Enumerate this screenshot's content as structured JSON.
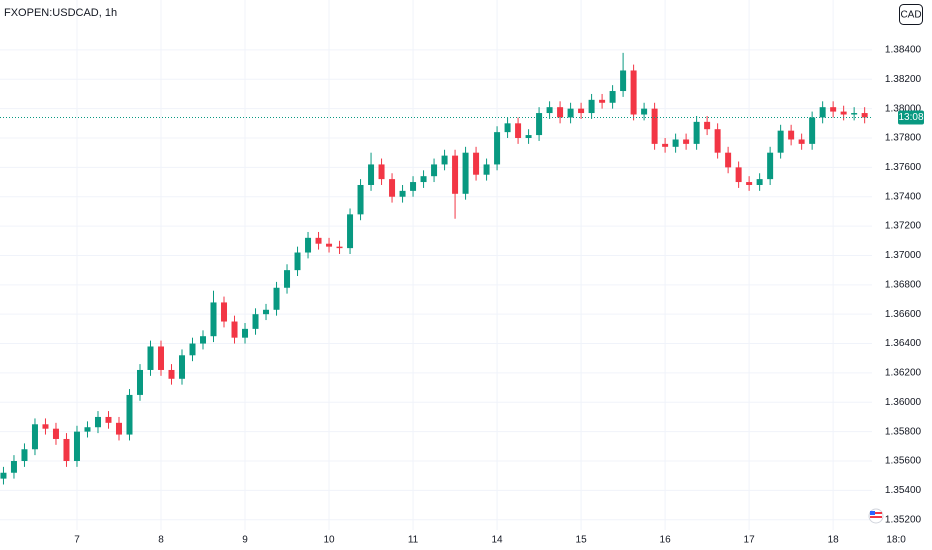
{
  "chart_data": {
    "type": "candlestick",
    "title": "FXOPEN:USDCAD, 1h",
    "currency_button": "CAD",
    "up_color": "#089981",
    "down_color": "#f23645",
    "grid": true,
    "xlim": [
      -0.33,
      82.7
    ],
    "xticks": [
      {
        "value": 7,
        "label": "7"
      },
      {
        "value": 15,
        "label": "8"
      },
      {
        "value": 23,
        "label": "9"
      },
      {
        "value": 31,
        "label": "10"
      },
      {
        "value": 39,
        "label": "11"
      },
      {
        "value": 47,
        "label": "14"
      },
      {
        "value": 55,
        "label": "15"
      },
      {
        "value": 63,
        "label": "16"
      },
      {
        "value": 71,
        "label": "17"
      },
      {
        "value": 79,
        "label": "18"
      },
      {
        "value": 85,
        "label": "18:0"
      }
    ],
    "ylim": [
      1.3513,
      1.3874
    ],
    "yticks": [
      {
        "value": 1.352,
        "label": "1.35200"
      },
      {
        "value": 1.354,
        "label": "1.35400"
      },
      {
        "value": 1.356,
        "label": "1.35600"
      },
      {
        "value": 1.358,
        "label": "1.35800"
      },
      {
        "value": 1.36,
        "label": "1.36000"
      },
      {
        "value": 1.362,
        "label": "1.36200"
      },
      {
        "value": 1.364,
        "label": "1.36400"
      },
      {
        "value": 1.366,
        "label": "1.36600"
      },
      {
        "value": 1.368,
        "label": "1.36800"
      },
      {
        "value": 1.37,
        "label": "1.37000"
      },
      {
        "value": 1.372,
        "label": "1.37200"
      },
      {
        "value": 1.374,
        "label": "1.37400"
      },
      {
        "value": 1.376,
        "label": "1.37600"
      },
      {
        "value": 1.378,
        "label": "1.37800"
      },
      {
        "value": 1.38,
        "label": "1.38000"
      },
      {
        "value": 1.382,
        "label": "1.38200"
      },
      {
        "value": 1.384,
        "label": "1.38400"
      }
    ],
    "last_price": 1.3794,
    "countdown": "13:08",
    "open": [
      1.3548,
      1.3552,
      1.356,
      1.3568,
      1.3585,
      1.3582,
      1.3575,
      1.356,
      1.358,
      1.3583,
      1.359,
      1.3586,
      1.3578,
      1.3605,
      1.3622,
      1.3638,
      1.3622,
      1.3616,
      1.3632,
      1.364,
      1.3645,
      1.3668,
      1.3655,
      1.3644,
      1.365,
      1.366,
      1.3663,
      1.3678,
      1.369,
      1.3702,
      1.3712,
      1.3708,
      1.3706,
      1.3705,
      1.3728,
      1.3748,
      1.3762,
      1.3752,
      1.374,
      1.3744,
      1.375,
      1.3754,
      1.3762,
      1.3768,
      1.3742,
      1.377,
      1.3755,
      1.3762,
      1.3784,
      1.379,
      1.378,
      1.3782,
      1.3797,
      1.3801,
      1.3794,
      1.38,
      1.3797,
      1.3806,
      1.3804,
      1.3812,
      1.3826,
      1.3796,
      1.38,
      1.3776,
      1.3774,
      1.3779,
      1.3776,
      1.3791,
      1.3786,
      1.377,
      1.376,
      1.375,
      1.3748,
      1.3752,
      1.377,
      1.3785,
      1.3779,
      1.3776,
      1.3794,
      1.3801,
      1.3798,
      1.3796,
      1.3797
    ],
    "high": [
      1.3556,
      1.3564,
      1.3572,
      1.3589,
      1.3589,
      1.3586,
      1.3579,
      1.3584,
      1.3587,
      1.3594,
      1.3594,
      1.359,
      1.3609,
      1.3626,
      1.3642,
      1.3642,
      1.3626,
      1.3636,
      1.3644,
      1.3649,
      1.3676,
      1.3672,
      1.3659,
      1.3654,
      1.3664,
      1.3667,
      1.3682,
      1.3694,
      1.3706,
      1.3716,
      1.3716,
      1.3712,
      1.371,
      1.3732,
      1.3752,
      1.377,
      1.3766,
      1.3756,
      1.3748,
      1.3754,
      1.3758,
      1.3766,
      1.3772,
      1.3772,
      1.3774,
      1.3774,
      1.3766,
      1.3788,
      1.3794,
      1.3794,
      1.3786,
      1.3801,
      1.3805,
      1.3805,
      1.3804,
      1.3804,
      1.381,
      1.381,
      1.3816,
      1.3838,
      1.383,
      1.3804,
      1.3804,
      1.378,
      1.3783,
      1.3783,
      1.3795,
      1.3795,
      1.379,
      1.3774,
      1.3764,
      1.3754,
      1.3756,
      1.3774,
      1.3789,
      1.3789,
      1.3783,
      1.3798,
      1.3805,
      1.3805,
      1.3802,
      1.3801,
      1.3801
    ],
    "low": [
      1.3544,
      1.3548,
      1.3556,
      1.3564,
      1.3578,
      1.3571,
      1.3556,
      1.3556,
      1.3576,
      1.3579,
      1.3582,
      1.3574,
      1.3574,
      1.3601,
      1.3618,
      1.3618,
      1.3612,
      1.3612,
      1.3628,
      1.3636,
      1.3641,
      1.3651,
      1.364,
      1.364,
      1.3646,
      1.3656,
      1.3659,
      1.3674,
      1.3686,
      1.3698,
      1.3704,
      1.3702,
      1.3701,
      1.3701,
      1.3724,
      1.3744,
      1.3748,
      1.3736,
      1.3736,
      1.374,
      1.3746,
      1.375,
      1.3758,
      1.3725,
      1.3738,
      1.3751,
      1.3751,
      1.3758,
      1.378,
      1.3776,
      1.3776,
      1.3778,
      1.3793,
      1.379,
      1.379,
      1.3793,
      1.3793,
      1.38,
      1.38,
      1.3808,
      1.3792,
      1.3792,
      1.3772,
      1.377,
      1.377,
      1.3772,
      1.3772,
      1.3782,
      1.3766,
      1.3756,
      1.3746,
      1.3744,
      1.3744,
      1.3748,
      1.3766,
      1.3775,
      1.3772,
      1.3772,
      1.379,
      1.3794,
      1.3792,
      1.3792,
      1.379
    ],
    "close": [
      1.3552,
      1.356,
      1.3568,
      1.3585,
      1.3582,
      1.3575,
      1.356,
      1.358,
      1.3583,
      1.359,
      1.3586,
      1.3578,
      1.3605,
      1.3622,
      1.3638,
      1.3622,
      1.3616,
      1.3632,
      1.364,
      1.3645,
      1.3668,
      1.3655,
      1.3644,
      1.365,
      1.366,
      1.3663,
      1.3678,
      1.369,
      1.3702,
      1.3712,
      1.3708,
      1.3706,
      1.3705,
      1.3728,
      1.3748,
      1.3762,
      1.3752,
      1.374,
      1.3744,
      1.375,
      1.3754,
      1.3762,
      1.3768,
      1.3742,
      1.377,
      1.3755,
      1.3762,
      1.3784,
      1.379,
      1.378,
      1.3782,
      1.3797,
      1.3801,
      1.3794,
      1.38,
      1.3797,
      1.3806,
      1.3804,
      1.3812,
      1.3826,
      1.3796,
      1.38,
      1.3776,
      1.3774,
      1.3779,
      1.3776,
      1.3791,
      1.3786,
      1.377,
      1.376,
      1.375,
      1.3748,
      1.3752,
      1.377,
      1.3785,
      1.3779,
      1.3776,
      1.3794,
      1.3801,
      1.3798,
      1.3796,
      1.3797,
      1.3794
    ]
  }
}
